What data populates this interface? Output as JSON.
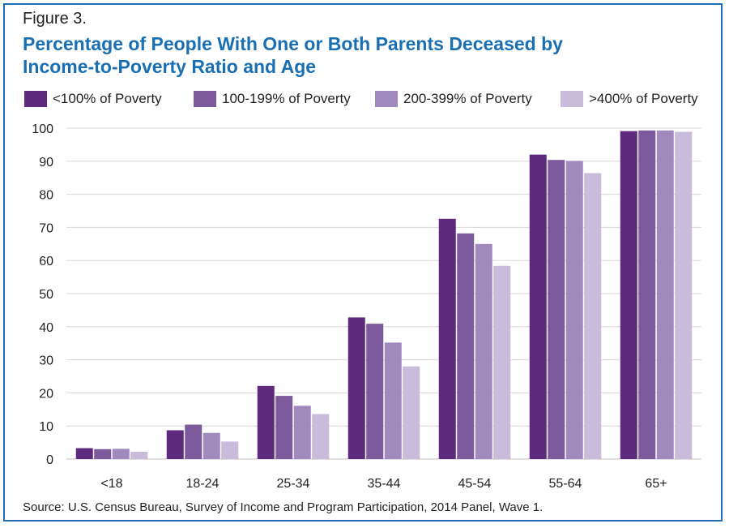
{
  "figure_label": "Figure 3.",
  "title_line1": "Percentage of People With One or Both Parents Deceased by",
  "title_line2": "Income-to-Poverty Ratio and Age",
  "source": "Source: U.S. Census Bureau, Survey of Income and Program Participation, 2014 Panel, Wave 1.",
  "chart_data": {
    "type": "bar",
    "title": "Percentage of People With One or Both Parents Deceased by Income-to-Poverty Ratio and Age",
    "xlabel": "",
    "ylabel": "",
    "ylim": [
      0,
      100
    ],
    "yticks": [
      "0",
      "10",
      "20",
      "30",
      "40",
      "50",
      "60",
      "70",
      "80",
      "90",
      "100"
    ],
    "grid": true,
    "legend_position": "top",
    "categories": [
      "<18",
      "18-24",
      "25-34",
      "35-44",
      "45-54",
      "55-64",
      "65+"
    ],
    "series": [
      {
        "name": "<100% of Poverty",
        "color": "#5d2a7e",
        "values": [
          3.3,
          8.7,
          22.1,
          42.8,
          72.6,
          92.0,
          99.1
        ]
      },
      {
        "name": "100-199% of Poverty",
        "color": "#7d5a9c",
        "values": [
          3.0,
          10.4,
          19.1,
          40.9,
          68.2,
          90.4,
          99.3
        ]
      },
      {
        "name": "200-399% of Poverty",
        "color": "#9f89bd",
        "values": [
          3.1,
          7.9,
          16.1,
          35.2,
          65.0,
          90.1,
          99.3
        ]
      },
      {
        "name": ">400% of Poverty",
        "color": "#c9bcdb",
        "values": [
          2.2,
          5.3,
          13.6,
          28.0,
          58.4,
          86.4,
          98.9
        ]
      }
    ]
  }
}
